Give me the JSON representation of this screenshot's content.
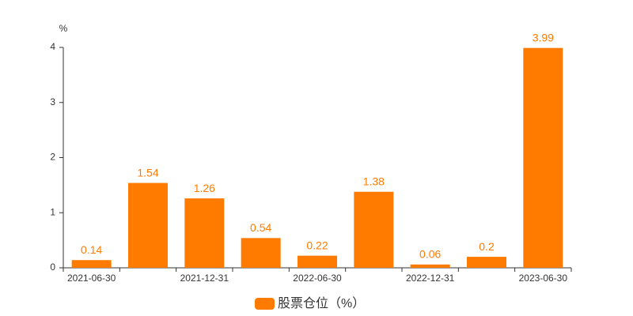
{
  "chart_data": {
    "type": "bar",
    "y_label": "%",
    "categories": [
      "2021-06-30",
      null,
      "2021-12-31",
      null,
      "2022-06-30",
      null,
      "2022-12-31",
      null,
      "2023-06-30"
    ],
    "series": [
      {
        "name": "股票仓位（%）",
        "color": "#ff7b00",
        "values": [
          0.14,
          1.54,
          1.26,
          0.54,
          0.22,
          1.38,
          0.06,
          0.2,
          3.99
        ]
      }
    ],
    "ylim": [
      0,
      4
    ],
    "yticks": [
      0,
      1,
      2,
      3,
      4
    ],
    "legend": "bottom"
  }
}
